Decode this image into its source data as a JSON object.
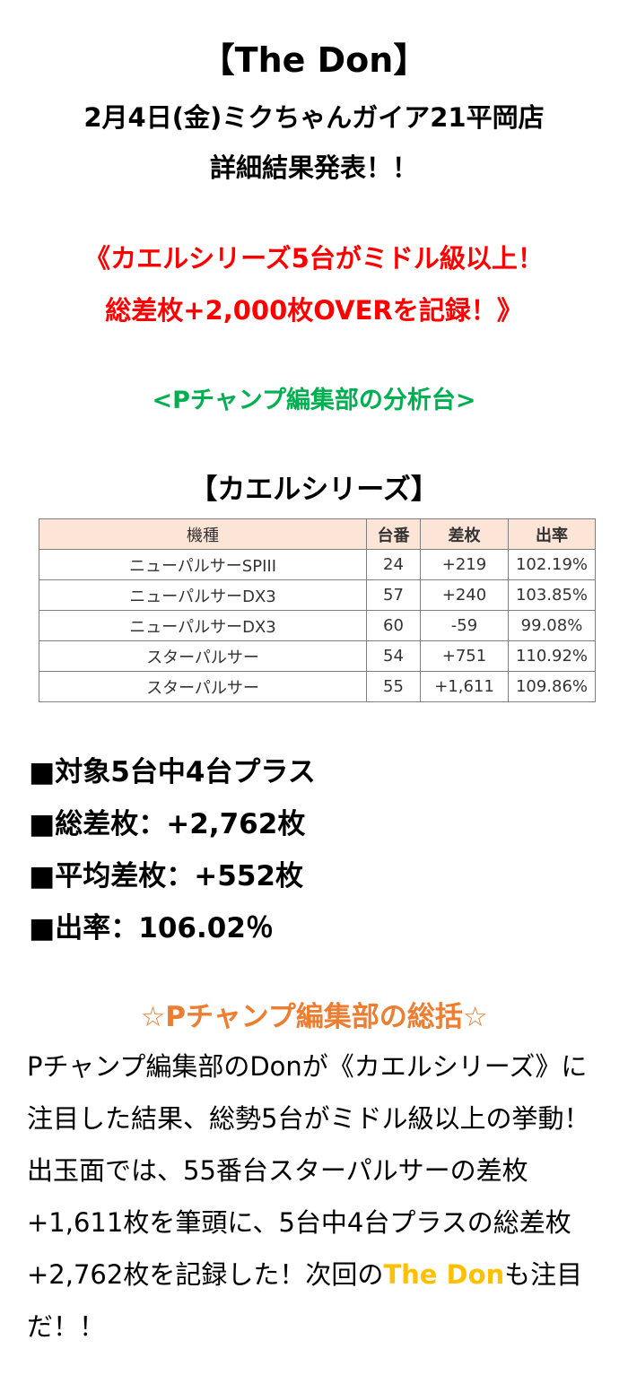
{
  "header": {
    "title": "【The Don】",
    "subtitle": "2月4日(金)ミクちゃんガイア21平岡店",
    "subtitle2": "詳細結果発表！！"
  },
  "headline": {
    "line1": "《カエルシリーズ5台がミドル級以上！",
    "line2": "総差枚+2,000枚OVERを記録！》",
    "color": "#ff0000"
  },
  "section_label": {
    "text": "<Pチャンプ編集部の分析台>",
    "color": "#00b050"
  },
  "table": {
    "title": "【カエルシリーズ】",
    "headers": [
      "機種",
      "台番",
      "差枚",
      "出率"
    ],
    "rows": [
      [
        "ニューパルサーSPIII",
        "24",
        "+219",
        "102.19%"
      ],
      [
        "ニューパルサーDX3",
        "57",
        "+240",
        "103.85%"
      ],
      [
        "ニューパルサーDX3",
        "60",
        "-59",
        "99.08%"
      ],
      [
        "スターパルサー",
        "54",
        "+751",
        "110.92%"
      ],
      [
        "スターパルサー",
        "55",
        "+1,611",
        "109.86%"
      ]
    ]
  },
  "summary": [
    "■対象5台中4台プラス",
    "■総差枚：+2,762枚",
    "■平均差枚：+552枚",
    "■出率：106.02％"
  ],
  "review": {
    "title": "☆Pチャンプ編集部の総括☆",
    "title_color": "#ed7d31",
    "body_before": "Pチャンプ編集部のDonが《カエルシリーズ》に注目した結果、総勢5台がミドル級以上の挙動！出玉面では、55番台スターパルサーの差枚+1,611枚を筆頭に、5台中4台プラスの総差枚+2,762枚を記録した！次回の",
    "highlight": "The Don",
    "highlight_color": "#ffc000",
    "body_after": "も注目だ！！"
  }
}
